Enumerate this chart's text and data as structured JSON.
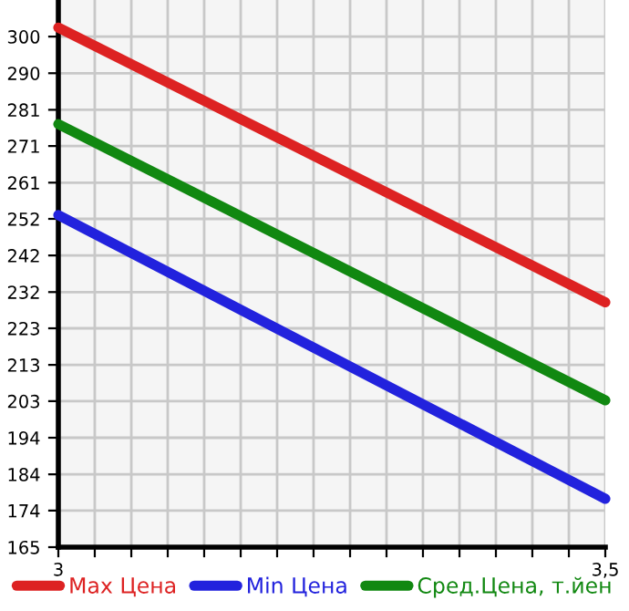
{
  "chart_data": {
    "type": "line",
    "x": [
      3,
      3.5
    ],
    "series": [
      {
        "name": "Max Цена",
        "color": "#dd2222",
        "values": [
          302.4,
          229.6
        ]
      },
      {
        "name": "Min Цена",
        "color": "#2222dd",
        "values": [
          252.7,
          177.5
        ]
      },
      {
        "name": "Сред.Цена, т.йен",
        "color": "#118811",
        "values": [
          276.8,
          203.6
        ]
      }
    ],
    "xlim": [
      3,
      3.5
    ],
    "xticks": [
      3,
      {
        "value": 3.0333,
        "label": null
      },
      {
        "value": 3.0667,
        "label": null
      },
      {
        "value": 3.1,
        "label": null
      },
      {
        "value": 3.1333,
        "label": null
      },
      {
        "value": 3.1667,
        "label": null
      },
      {
        "value": 3.2,
        "label": null
      },
      {
        "value": 3.2333,
        "label": null
      },
      {
        "value": 3.2667,
        "label": null
      },
      {
        "value": 3.3,
        "label": null
      },
      {
        "value": 3.3333,
        "label": null
      },
      {
        "value": 3.3667,
        "label": null
      },
      {
        "value": 3.4,
        "label": null
      },
      {
        "value": 3.4333,
        "label": null
      },
      {
        "value": 3.4667,
        "label": null
      },
      {
        "value": 3.5,
        "label": "3,5"
      }
    ],
    "ylim": [
      164.7,
      309.7
    ],
    "yticks": [
      {
        "value": 164.7,
        "label": "165"
      },
      {
        "value": 174.4,
        "label": "174"
      },
      {
        "value": 184.0,
        "label": "184"
      },
      {
        "value": 193.7,
        "label": "194"
      },
      {
        "value": 203.4,
        "label": "203"
      },
      {
        "value": 213.0,
        "label": "213"
      },
      {
        "value": 222.7,
        "label": "223"
      },
      {
        "value": 232.3,
        "label": "232"
      },
      {
        "value": 242.0,
        "label": "242"
      },
      {
        "value": 251.7,
        "label": "252"
      },
      {
        "value": 261.3,
        "label": "261"
      },
      {
        "value": 271.0,
        "label": "271"
      },
      {
        "value": 280.6,
        "label": "281"
      },
      {
        "value": 290.3,
        "label": "290"
      },
      300
    ],
    "grid": true,
    "legend": "bottom",
    "marker": "none",
    "line_style": "solid"
  }
}
